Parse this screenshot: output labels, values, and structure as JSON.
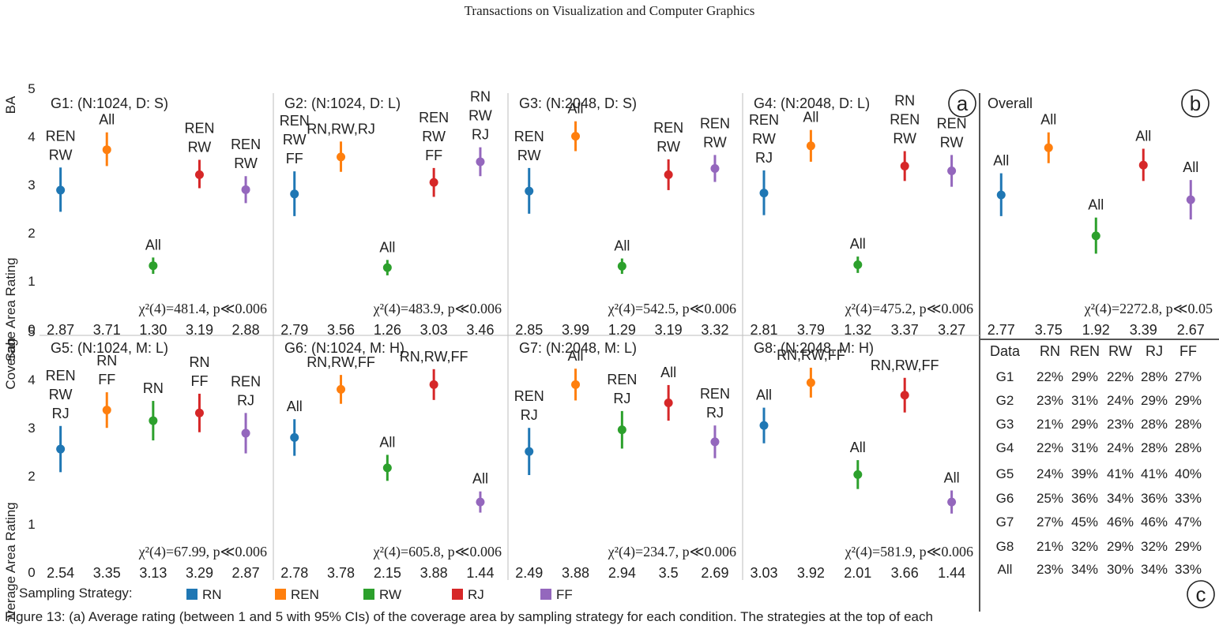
{
  "header": "Transactions on Visualization and Computer Graphics",
  "caption": "Figure 13: (a) Average rating (between 1 and 5 with 95% CIs) of the coverage area by sampling strategy for each condition. The strategies at the top of each",
  "y_axis_title": "Coverage Area Rating",
  "row_labels": [
    "BA",
    "Sah"
  ],
  "y_ticks": [
    "0",
    "1",
    "2",
    "3",
    "4",
    "5"
  ],
  "panel_letters": [
    "a",
    "b",
    "c"
  ],
  "legend": {
    "title": "Sampling Strategy:",
    "items": [
      {
        "name": "RN",
        "color": "#1f77b4"
      },
      {
        "name": "REN",
        "color": "#ff7f0e"
      },
      {
        "name": "RW",
        "color": "#2ca02c"
      },
      {
        "name": "RJ",
        "color": "#d62728"
      },
      {
        "name": "FF",
        "color": "#9467bd"
      }
    ]
  },
  "chart_data": [
    {
      "type": "scatter",
      "title": "G1: (N:1024, D: S)",
      "stat": "χ²(4)=481.4, p≪0.006",
      "ylim": [
        0,
        5
      ],
      "categories": [
        "RN",
        "REN",
        "RW",
        "RJ",
        "FF"
      ],
      "values": [
        2.87,
        3.71,
        1.3,
        3.19,
        2.88
      ],
      "values_text": [
        "2.87",
        "3.71",
        "1.30",
        "3.19",
        "2.88"
      ],
      "ci": [
        [
          2.42,
          3.34
        ],
        [
          3.37,
          4.07
        ],
        [
          1.13,
          1.47
        ],
        [
          2.91,
          3.5
        ],
        [
          2.6,
          3.16
        ]
      ],
      "group_labels": [
        [
          "REN",
          "RW"
        ],
        [
          "All"
        ],
        [
          "All"
        ],
        [
          "REN",
          "RW"
        ],
        [
          "REN",
          "RW"
        ]
      ]
    },
    {
      "type": "scatter",
      "title": "G2: (N:1024, D: L)",
      "stat": "χ²(4)=483.9, p≪0.006",
      "ylim": [
        0,
        5
      ],
      "categories": [
        "RN",
        "REN",
        "RW",
        "RJ",
        "FF"
      ],
      "values": [
        2.79,
        3.56,
        1.26,
        3.03,
        3.46
      ],
      "values_text": [
        "2.79",
        "3.56",
        "1.26",
        "3.03",
        "3.46"
      ],
      "ci": [
        [
          2.33,
          3.26
        ],
        [
          3.25,
          3.88
        ],
        [
          1.1,
          1.42
        ],
        [
          2.73,
          3.33
        ],
        [
          3.16,
          3.76
        ]
      ],
      "group_labels": [
        [
          "REN",
          "RW",
          "FF"
        ],
        [
          "RN,RW,RJ"
        ],
        [
          "All"
        ],
        [
          "REN",
          "RW",
          "FF"
        ],
        [
          "RN",
          "RW",
          "RJ"
        ]
      ]
    },
    {
      "type": "scatter",
      "title": "G3: (N:2048, D: S)",
      "stat": "χ²(4)=542.5, p≪0.006",
      "ylim": [
        0,
        5
      ],
      "categories": [
        "RN",
        "REN",
        "RW",
        "RJ",
        "FF"
      ],
      "values": [
        2.85,
        3.99,
        1.29,
        3.19,
        3.32
      ],
      "values_text": [
        "2.85",
        "3.99",
        "1.29",
        "3.19",
        "3.32"
      ],
      "ci": [
        [
          2.38,
          3.33
        ],
        [
          3.68,
          4.3
        ],
        [
          1.13,
          1.45
        ],
        [
          2.87,
          3.51
        ],
        [
          3.04,
          3.6
        ]
      ],
      "group_labels": [
        [
          "REN",
          "RW"
        ],
        [
          "All"
        ],
        [
          "All"
        ],
        [
          "REN",
          "RW"
        ],
        [
          "REN",
          "RW"
        ]
      ]
    },
    {
      "type": "scatter",
      "title": "G4: (N:2048, D: L)",
      "stat": "χ²(4)=475.2, p≪0.006",
      "ylim": [
        0,
        5
      ],
      "categories": [
        "RN",
        "REN",
        "RW",
        "RJ",
        "FF"
      ],
      "values": [
        2.81,
        3.79,
        1.32,
        3.37,
        3.27
      ],
      "values_text": [
        "2.81",
        "3.79",
        "1.32",
        "3.37",
        "3.27"
      ],
      "ci": [
        [
          2.35,
          3.28
        ],
        [
          3.46,
          4.12
        ],
        [
          1.15,
          1.49
        ],
        [
          3.06,
          3.68
        ],
        [
          2.94,
          3.6
        ]
      ],
      "group_labels": [
        [
          "REN",
          "RW",
          "RJ"
        ],
        [
          "All"
        ],
        [
          "All"
        ],
        [
          "RN",
          "REN",
          "RW"
        ],
        [
          "REN",
          "RW"
        ]
      ]
    },
    {
      "type": "scatter",
      "title": "Overall",
      "stat": "χ²(4)=2272.8, p≪0.05",
      "ylim": [
        0,
        5
      ],
      "categories": [
        "RN",
        "REN",
        "RW",
        "RJ",
        "FF"
      ],
      "values": [
        2.77,
        3.75,
        1.92,
        3.39,
        2.67
      ],
      "values_text": [
        "2.77",
        "3.75",
        "1.92",
        "3.39",
        "2.67"
      ],
      "ci": [
        [
          2.33,
          3.22
        ],
        [
          3.43,
          4.07
        ],
        [
          1.55,
          2.3
        ],
        [
          3.06,
          3.73
        ],
        [
          2.26,
          3.08
        ]
      ],
      "group_labels": [
        [
          "All"
        ],
        [
          "All"
        ],
        [
          "All"
        ],
        [
          "All"
        ],
        [
          "All"
        ]
      ]
    },
    {
      "type": "scatter",
      "title": "G5: (N:1024, M: L)",
      "stat": "χ²(4)=67.99, p≪0.006",
      "ylim": [
        0,
        5
      ],
      "categories": [
        "RN",
        "REN",
        "RW",
        "RJ",
        "FF"
      ],
      "values": [
        2.54,
        3.35,
        3.13,
        3.29,
        2.87
      ],
      "values_text": [
        "2.54",
        "3.35",
        "3.13",
        "3.29",
        "2.87"
      ],
      "ci": [
        [
          2.06,
          3.02
        ],
        [
          2.98,
          3.72
        ],
        [
          2.72,
          3.54
        ],
        [
          2.89,
          3.69
        ],
        [
          2.45,
          3.29
        ]
      ],
      "group_labels": [
        [
          "REN",
          "RW",
          "RJ"
        ],
        [
          "RN",
          "FF"
        ],
        [
          "RN"
        ],
        [
          "RN",
          "FF"
        ],
        [
          "REN",
          "RJ"
        ]
      ]
    },
    {
      "type": "scatter",
      "title": "G6: (N:1024, M: H)",
      "stat": "χ²(4)=605.8, p≪0.006",
      "ylim": [
        0,
        5
      ],
      "categories": [
        "RN",
        "REN",
        "RW",
        "RJ",
        "FF"
      ],
      "values": [
        2.78,
        3.78,
        2.15,
        3.88,
        1.44
      ],
      "values_text": [
        "2.78",
        "3.78",
        "2.15",
        "3.88",
        "1.44"
      ],
      "ci": [
        [
          2.4,
          3.16
        ],
        [
          3.48,
          4.08
        ],
        [
          1.88,
          2.42
        ],
        [
          3.56,
          4.2
        ],
        [
          1.22,
          1.66
        ]
      ],
      "group_labels": [
        [
          "All"
        ],
        [
          "RN,RW,FF"
        ],
        [
          "All"
        ],
        [
          "RN,RW,FF"
        ],
        [
          "All"
        ]
      ]
    },
    {
      "type": "scatter",
      "title": "G7: (N:2048, M: L)",
      "stat": "χ²(4)=234.7, p≪0.006",
      "ylim": [
        0,
        5
      ],
      "categories": [
        "RN",
        "REN",
        "RW",
        "RJ",
        "FF"
      ],
      "values": [
        2.49,
        3.88,
        2.94,
        3.5,
        2.69
      ],
      "values_text": [
        "2.49",
        "3.88",
        "2.94",
        "3.5",
        "2.69"
      ],
      "ci": [
        [
          2.0,
          2.98
        ],
        [
          3.55,
          4.21
        ],
        [
          2.55,
          3.33
        ],
        [
          3.13,
          3.87
        ],
        [
          2.35,
          3.03
        ]
      ],
      "group_labels": [
        [
          "REN",
          "RJ"
        ],
        [
          "All"
        ],
        [
          "REN",
          "RJ"
        ],
        [
          "All"
        ],
        [
          "REN",
          "RJ"
        ]
      ]
    },
    {
      "type": "scatter",
      "title": "G8: (N:2048, M: H)",
      "stat": "χ²(4)=581.9, p≪0.006",
      "ylim": [
        0,
        5
      ],
      "categories": [
        "RN",
        "REN",
        "RW",
        "RJ",
        "FF"
      ],
      "values": [
        3.03,
        3.92,
        2.01,
        3.66,
        1.44
      ],
      "values_text": [
        "3.03",
        "3.92",
        "2.01",
        "3.66",
        "1.44"
      ],
      "ci": [
        [
          2.66,
          3.4
        ],
        [
          3.61,
          4.23
        ],
        [
          1.71,
          2.31
        ],
        [
          3.3,
          4.02
        ],
        [
          1.2,
          1.68
        ]
      ],
      "group_labels": [
        [
          "All"
        ],
        [
          "RN,RW,FF"
        ],
        [
          "All"
        ],
        [
          "RN,RW,FF"
        ],
        [
          "All"
        ]
      ]
    },
    {
      "type": "table",
      "columns": [
        "Data",
        "RN",
        "REN",
        "RW",
        "RJ",
        "FF"
      ],
      "rows": [
        [
          "G1",
          "22%",
          "29%",
          "22%",
          "28%",
          "27%"
        ],
        [
          "G2",
          "23%",
          "31%",
          "24%",
          "29%",
          "29%"
        ],
        [
          "G3",
          "21%",
          "29%",
          "23%",
          "28%",
          "28%"
        ],
        [
          "G4",
          "22%",
          "31%",
          "24%",
          "28%",
          "28%"
        ],
        [
          "G5",
          "24%",
          "39%",
          "41%",
          "41%",
          "40%"
        ],
        [
          "G6",
          "25%",
          "36%",
          "34%",
          "36%",
          "33%"
        ],
        [
          "G7",
          "27%",
          "45%",
          "46%",
          "46%",
          "47%"
        ],
        [
          "G8",
          "21%",
          "32%",
          "29%",
          "32%",
          "29%"
        ],
        [
          "All",
          "23%",
          "34%",
          "30%",
          "34%",
          "33%"
        ]
      ]
    }
  ]
}
